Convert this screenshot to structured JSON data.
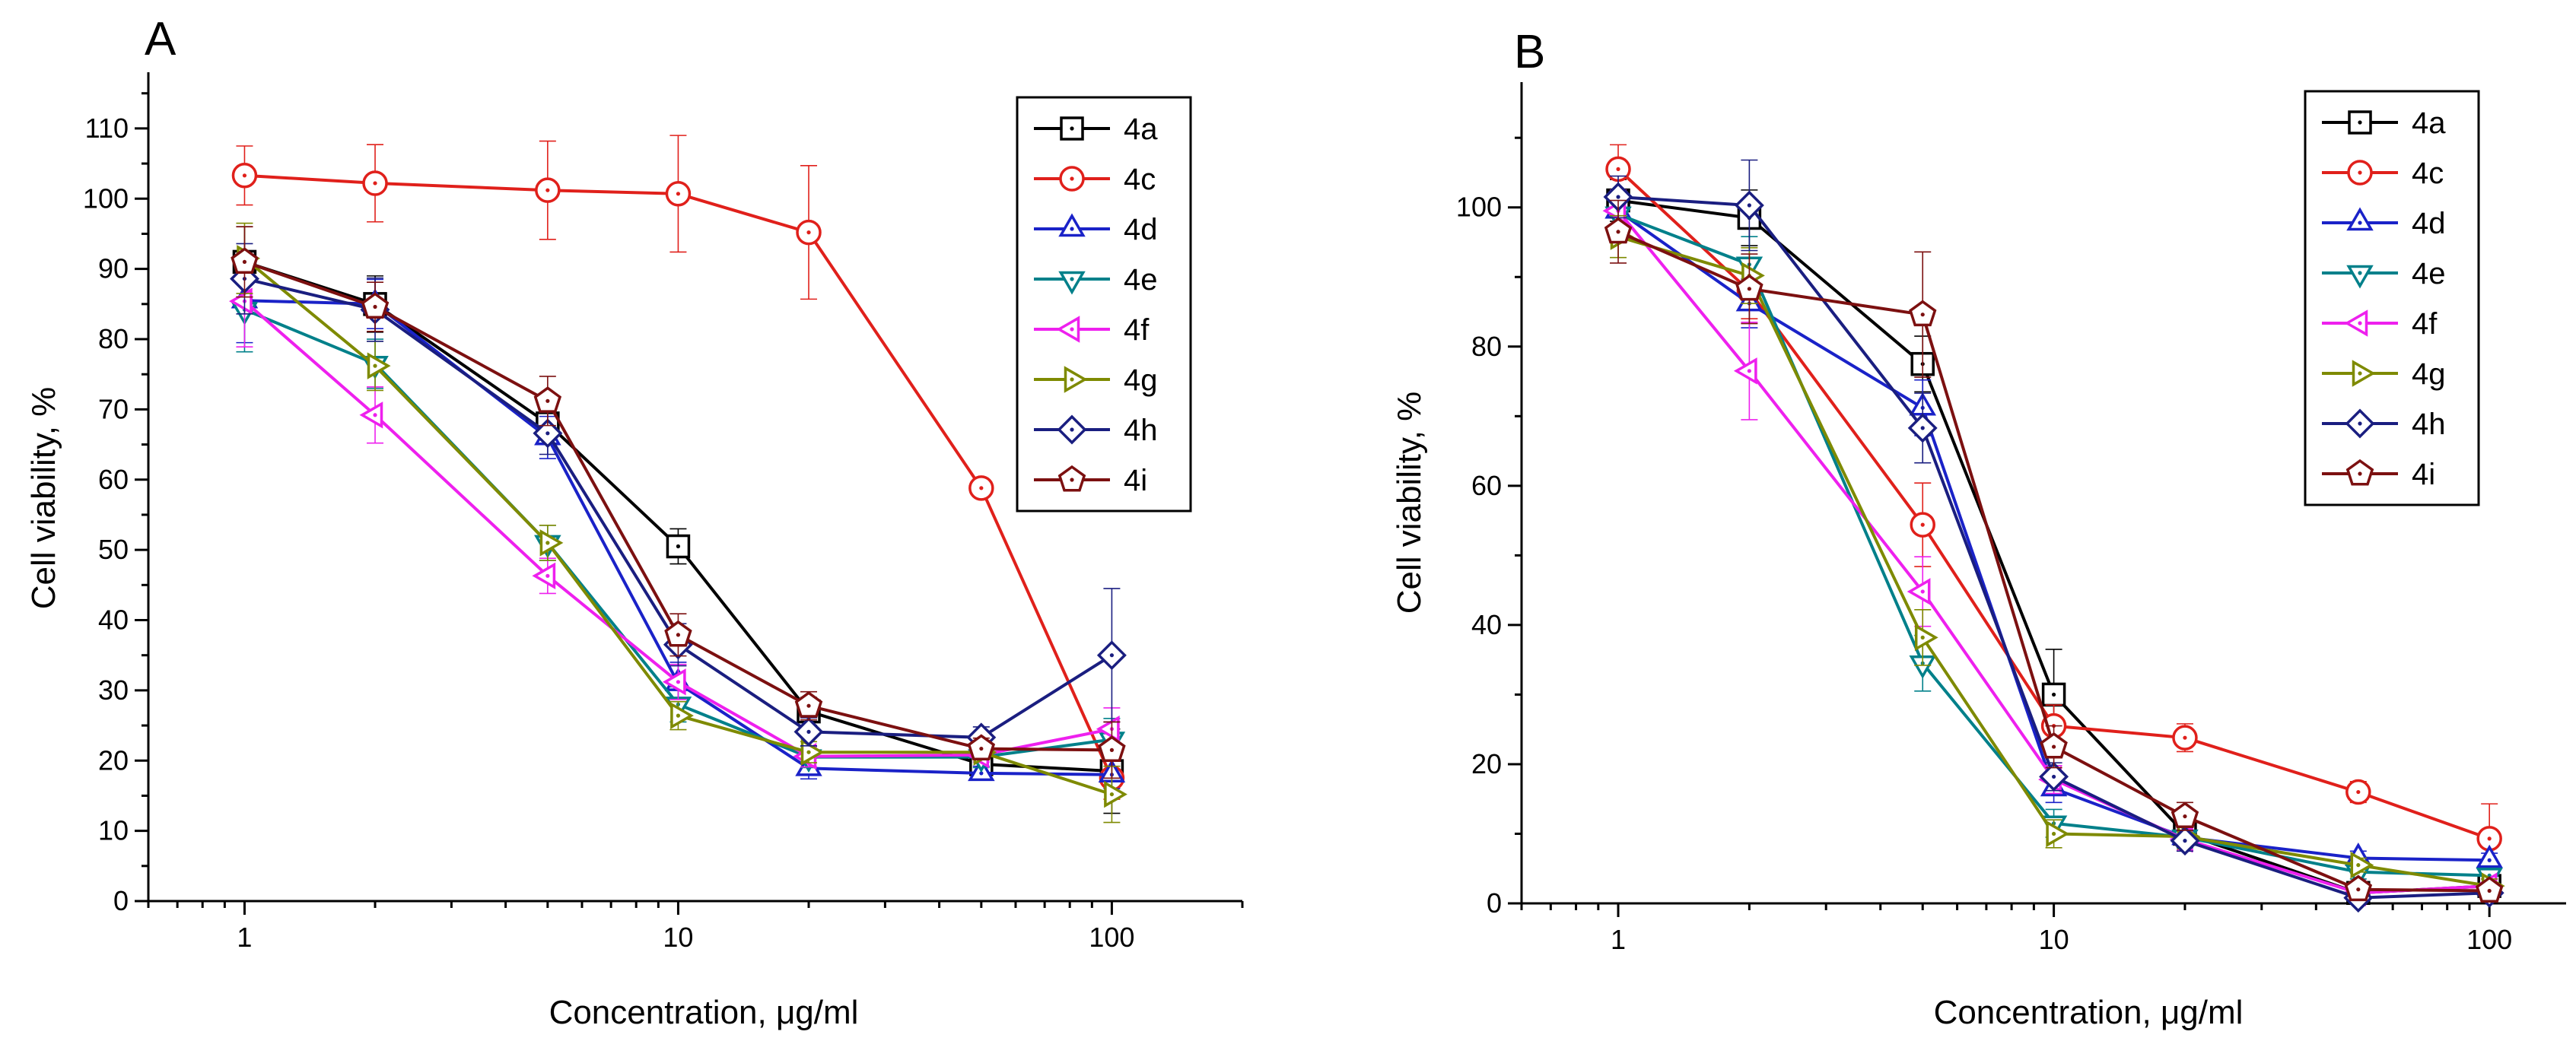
{
  "figure": {
    "panels": [
      "A",
      "B"
    ]
  },
  "chart_data": [
    {
      "type": "line",
      "panel_label": "A",
      "xlabel": "Concentration, μg/ml",
      "ylabel": "Cell viability, %",
      "xscale": "log",
      "xlim": [
        0.6,
        200
      ],
      "ylim": [
        0,
        118
      ],
      "xticks": [
        1,
        10,
        100
      ],
      "xtick_labels": [
        "1",
        "10",
        "100"
      ],
      "yticks": [
        0,
        10,
        20,
        30,
        40,
        50,
        60,
        70,
        80,
        90,
        100,
        110
      ],
      "ytick_labels": [
        "0",
        "10",
        "20",
        "30",
        "40",
        "50",
        "60",
        "70",
        "80",
        "90",
        "100",
        "110"
      ],
      "legend_position": "top-right",
      "x": [
        1,
        2,
        5,
        10,
        20,
        50,
        100
      ],
      "series": [
        {
          "name": "4a",
          "color": "#000000",
          "marker": "square",
          "values": [
            91,
            85,
            68,
            50.5,
            27,
            19.5,
            18.5
          ],
          "errors": [
            5,
            4,
            3,
            2.5,
            2,
            1.5,
            6
          ]
        },
        {
          "name": "4c",
          "color": "#e0201b",
          "marker": "circle",
          "values": [
            103.3,
            102.2,
            101.2,
            100.7,
            95.2,
            58.8,
            17.5
          ],
          "errors": [
            4.2,
            5.5,
            7,
            8.3,
            9.5,
            0,
            3
          ]
        },
        {
          "name": "4d",
          "color": "#1a22c8",
          "marker": "triangle-up",
          "values": [
            85.5,
            85,
            66,
            31,
            18.9,
            18.2,
            18
          ],
          "errors": [
            6,
            3.5,
            3,
            3,
            1.5,
            1,
            2
          ]
        },
        {
          "name": "4e",
          "color": "#00808a",
          "marker": "triangle-down",
          "values": [
            84.2,
            76.5,
            51,
            28,
            20.5,
            20.5,
            23
          ],
          "errors": [
            6,
            3.5,
            2.5,
            2.5,
            1.5,
            1.5,
            3
          ]
        },
        {
          "name": "4f",
          "color": "#ee20ee",
          "marker": "triangle-left",
          "values": [
            85.4,
            69.2,
            46.3,
            31.2,
            20.6,
            20.8,
            24.5
          ],
          "errors": [
            6.5,
            4,
            2.5,
            2.5,
            1.5,
            1,
            3
          ]
        },
        {
          "name": "4g",
          "color": "#7e8a00",
          "marker": "triangle-right",
          "values": [
            91.5,
            76.2,
            51,
            26.4,
            21.2,
            21.2,
            15.2
          ],
          "errors": [
            5,
            3.5,
            2.5,
            2,
            1.5,
            1,
            4
          ]
        },
        {
          "name": "4h",
          "color": "#1a1e80",
          "marker": "diamond",
          "values": [
            88.6,
            84.2,
            66.6,
            36.5,
            24.1,
            23.3,
            35
          ],
          "errors": [
            5,
            4.5,
            3,
            3,
            2,
            1.5,
            9.5
          ]
        },
        {
          "name": "4i",
          "color": "#7c1010",
          "marker": "pentagon",
          "values": [
            91,
            84.6,
            71.2,
            37.9,
            27.8,
            21.7,
            21.5
          ],
          "errors": [
            5,
            3.5,
            3.5,
            3,
            2,
            1.5,
            4
          ]
        }
      ]
    },
    {
      "type": "line",
      "panel_label": "B",
      "xlabel": "Concentration, μg/ml",
      "ylabel": "Cell viability, %",
      "xscale": "log",
      "xlim": [
        0.6,
        150
      ],
      "ylim": [
        0,
        118
      ],
      "xticks": [
        1,
        10,
        100
      ],
      "xtick_labels": [
        "1",
        "10",
        "100"
      ],
      "yticks": [
        0,
        20,
        40,
        60,
        80,
        100
      ],
      "ytick_labels": [
        "0",
        "20",
        "40",
        "60",
        "80",
        "100"
      ],
      "legend_position": "top-right",
      "x": [
        1,
        2,
        5,
        10,
        20,
        50,
        100
      ],
      "series": [
        {
          "name": "4a",
          "color": "#000000",
          "marker": "square",
          "values": [
            101,
            98.5,
            77.5,
            30,
            10,
            1.5,
            2.5
          ],
          "errors": [
            3,
            4,
            4,
            6.5,
            2,
            1,
            1
          ]
        },
        {
          "name": "4c",
          "color": "#e0201b",
          "marker": "circle",
          "values": [
            105.5,
            88,
            54.4,
            25.5,
            23.8,
            16,
            9.3
          ],
          "errors": [
            3.5,
            4,
            6,
            3,
            2,
            1.5,
            5
          ]
        },
        {
          "name": "4d",
          "color": "#1a22c8",
          "marker": "triangle-up",
          "values": [
            99.5,
            86.2,
            71.2,
            16.5,
            9.5,
            6.5,
            6.2
          ],
          "errors": [
            3,
            3.5,
            4,
            2,
            1.5,
            1,
            1
          ]
        },
        {
          "name": "4e",
          "color": "#00808a",
          "marker": "triangle-down",
          "values": [
            99,
            91.8,
            34.5,
            11.5,
            9.5,
            4.5,
            4
          ],
          "errors": [
            3,
            4,
            4,
            2,
            1.5,
            1,
            1
          ]
        },
        {
          "name": "4f",
          "color": "#ee20ee",
          "marker": "triangle-left",
          "values": [
            99.5,
            76.5,
            44.8,
            17.8,
            9.2,
            1.5,
            2.5
          ],
          "errors": [
            3,
            7,
            5,
            2,
            1.5,
            1,
            1
          ]
        },
        {
          "name": "4g",
          "color": "#7e8a00",
          "marker": "triangle-right",
          "values": [
            95.8,
            90.2,
            38.2,
            10,
            9.6,
            5.5,
            2.5
          ],
          "errors": [
            3,
            4,
            4,
            2,
            1.5,
            1,
            1
          ]
        },
        {
          "name": "4h",
          "color": "#1a1e80",
          "marker": "diamond",
          "values": [
            101.5,
            100.3,
            68.3,
            18.2,
            9,
            0.8,
            1.5
          ],
          "errors": [
            3,
            6.5,
            5,
            2,
            1.5,
            1,
            1
          ]
        },
        {
          "name": "4i",
          "color": "#7c1010",
          "marker": "pentagon",
          "values": [
            96.5,
            88.3,
            84.6,
            22.5,
            12.5,
            2,
            1.8
          ],
          "errors": [
            4.5,
            5,
            9,
            3,
            2,
            1,
            1
          ]
        }
      ]
    }
  ]
}
